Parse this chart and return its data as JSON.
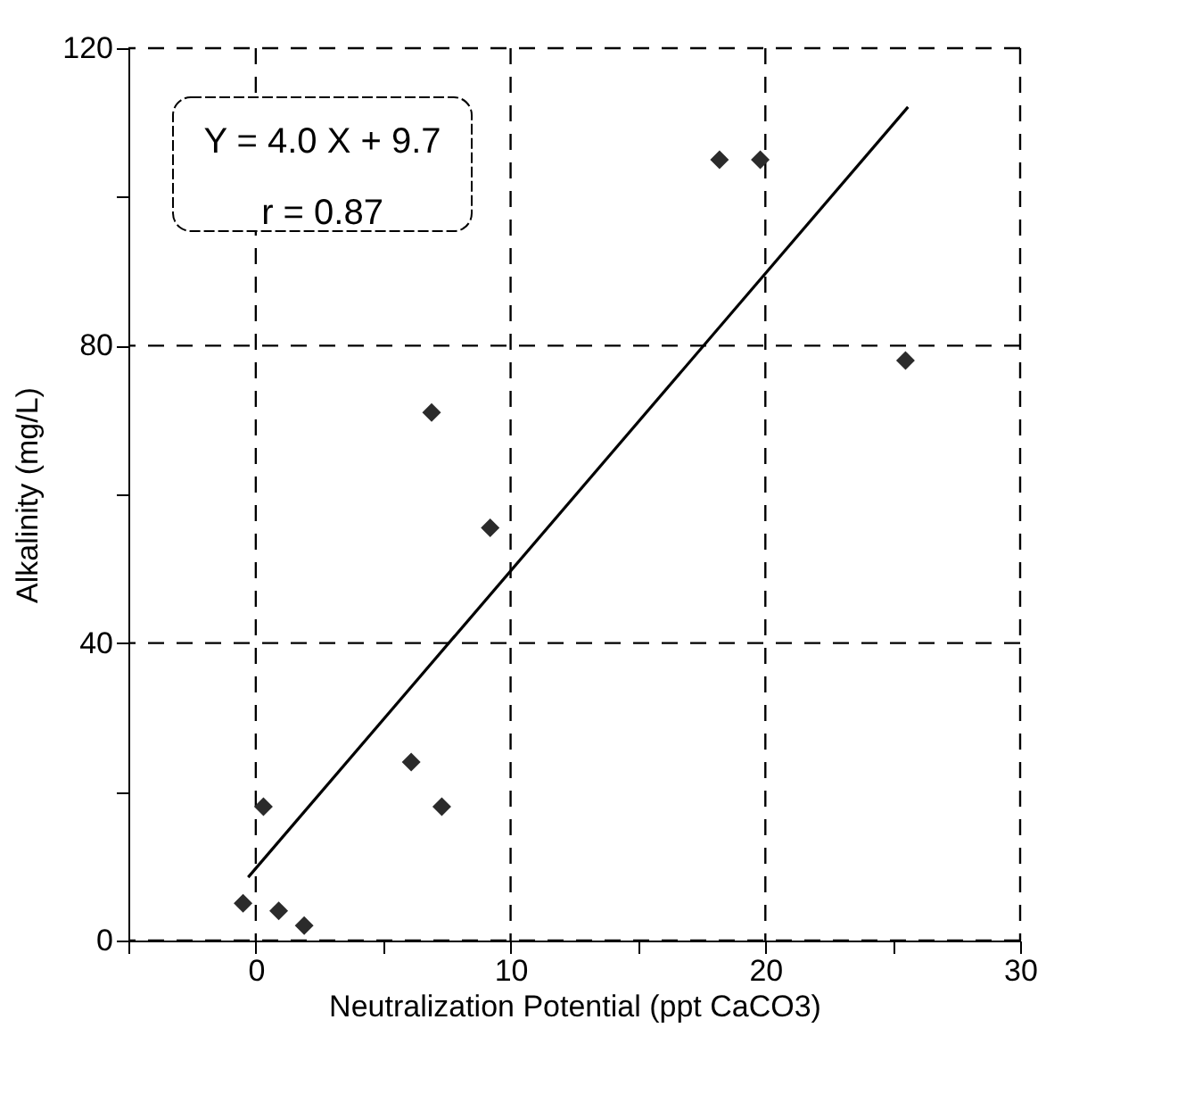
{
  "chart_data": {
    "type": "scatter",
    "xlabel": "Neutralization Potential (ppt CaCO3)",
    "ylabel": "Alkalinity (mg/L)",
    "annotations": [
      "Y = 4.0 X + 9.7",
      "r = 0.87"
    ],
    "xlim": [
      -5,
      30
    ],
    "xticks": [
      {
        "value": -5,
        "label": null
      },
      0,
      {
        "value": 5,
        "label": null
      },
      10,
      {
        "value": 15,
        "label": null
      },
      20,
      {
        "value": 25,
        "label": null
      },
      30
    ],
    "ylim": [
      0,
      120
    ],
    "yticks": [
      0,
      {
        "value": 20,
        "label": null
      },
      40,
      {
        "value": 60,
        "label": null
      },
      80,
      {
        "value": 100,
        "label": null
      },
      120
    ],
    "grid": true,
    "marker": "diamond",
    "series": [
      {
        "color": "#2b2b2b",
        "x": [
          -0.5,
          0.3,
          0.9,
          1.9,
          6.1,
          7.3,
          9.2,
          6.9,
          18.2,
          19.8,
          25.5
        ],
        "values": [
          5,
          18,
          4,
          2,
          24,
          18,
          55.5,
          71,
          105,
          105,
          78
        ]
      },
      {
        "type": "line",
        "marker": "none",
        "color": "#000000",
        "x": [
          -0.3,
          25.6
        ],
        "values": [
          8.5,
          112.1
        ]
      }
    ]
  }
}
